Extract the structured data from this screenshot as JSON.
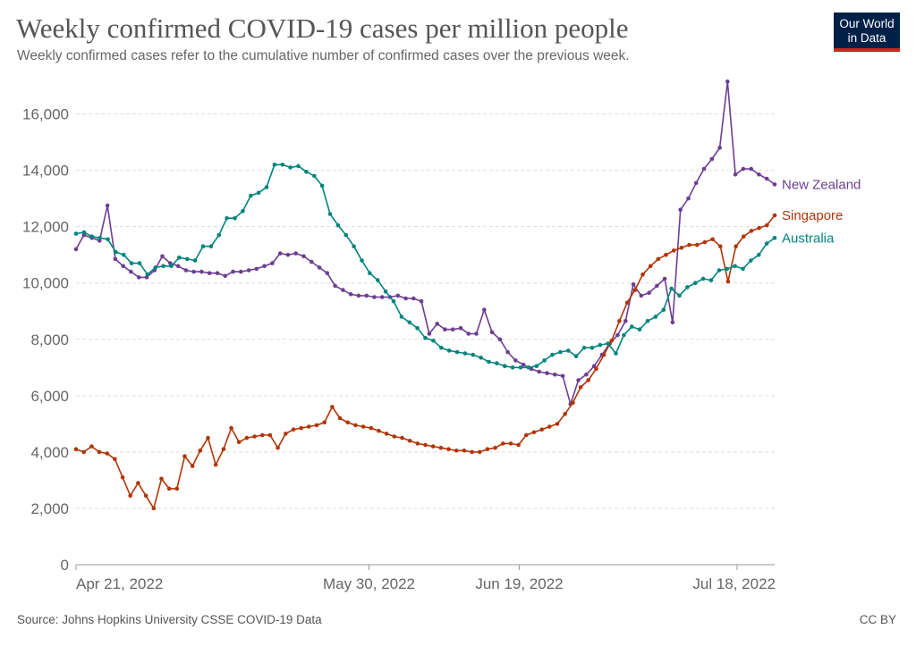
{
  "header": {
    "title": "Weekly confirmed COVID-19 cases per million people",
    "subtitle": "Weekly confirmed cases refer to the cumulative number of confirmed cases over the previous week.",
    "logo_line1": "Our World",
    "logo_line2": "in Data"
  },
  "footer": {
    "source": "Source: Johns Hopkins University CSSE COVID-19 Data",
    "license": "CC BY"
  },
  "colors": {
    "new_zealand": "#6D3E91",
    "singapore": "#B13507",
    "australia": "#00847E",
    "grid": "#dddddd",
    "axis_text": "#666666"
  },
  "chart_data": {
    "type": "line",
    "x_start": "2022-04-21",
    "x_end": "2022-07-23",
    "x_ticks": [
      {
        "date": "2022-04-21",
        "label": "Apr 21, 2022"
      },
      {
        "date": "2022-05-30",
        "label": "May 30, 2022"
      },
      {
        "date": "2022-06-19",
        "label": "Jun 19, 2022"
      },
      {
        "date": "2022-07-18",
        "label": "Jul 18, 2022"
      }
    ],
    "ylim": [
      0,
      17000
    ],
    "y_ticks": [
      0,
      2000,
      4000,
      6000,
      8000,
      10000,
      12000,
      14000,
      16000
    ],
    "y_tick_labels": [
      "0",
      "2,000",
      "4,000",
      "6,000",
      "8,000",
      "10,000",
      "12,000",
      "14,000",
      "16,000"
    ],
    "grid": true,
    "legend_placement": "line-end labels at right",
    "series": [
      {
        "name": "New Zealand",
        "color": "#6D3E91",
        "values": [
          11200,
          11700,
          11600,
          11500,
          12750,
          10850,
          10600,
          10400,
          10200,
          10200,
          10450,
          10950,
          10700,
          10600,
          10450,
          10400,
          10400,
          10350,
          10350,
          10250,
          10400,
          10400,
          10450,
          10500,
          10600,
          10700,
          11050,
          11000,
          11050,
          10950,
          10750,
          10550,
          10350,
          9900,
          9750,
          9600,
          9550,
          9550,
          9500,
          9500,
          9500,
          9550,
          9450,
          9450,
          9350,
          8200,
          8550,
          8350,
          8350,
          8400,
          8200,
          8200,
          9050,
          8250,
          8000,
          7550,
          7250,
          7100,
          6950,
          6850,
          6800,
          6750,
          6700,
          5700,
          6550,
          6750,
          7050,
          7450,
          7850,
          8150,
          8650,
          9950,
          9550,
          9650,
          9900,
          10150,
          8600,
          12600,
          13000,
          13550,
          14050,
          14400,
          14800,
          17150,
          13850,
          14050,
          14050,
          13850,
          13700,
          13500
        ]
      },
      {
        "name": "Singapore",
        "color": "#B13507",
        "values": [
          4100,
          4000,
          4200,
          4000,
          3950,
          3750,
          3100,
          2450,
          2900,
          2450,
          2000,
          3050,
          2700,
          2700,
          3850,
          3500,
          4050,
          4500,
          3550,
          4100,
          4850,
          4350,
          4500,
          4550,
          4600,
          4600,
          4150,
          4650,
          4800,
          4850,
          4900,
          4950,
          5050,
          5600,
          5200,
          5050,
          4950,
          4900,
          4850,
          4750,
          4650,
          4550,
          4500,
          4400,
          4300,
          4250,
          4200,
          4150,
          4100,
          4050,
          4050,
          4000,
          4000,
          4100,
          4150,
          4300,
          4300,
          4250,
          4600,
          4700,
          4800,
          4900,
          5000,
          5350,
          5750,
          6300,
          6550,
          6950,
          7450,
          7950,
          8650,
          9300,
          9750,
          10300,
          10600,
          10850,
          11000,
          11150,
          11250,
          11350,
          11350,
          11450,
          11550,
          11300,
          10050,
          11300,
          11650,
          11850,
          11950,
          12050,
          12400
        ]
      },
      {
        "name": "Australia",
        "color": "#00847E",
        "values": [
          11750,
          11800,
          11650,
          11600,
          11550,
          11100,
          11000,
          10700,
          10700,
          10300,
          10550,
          10600,
          10600,
          10900,
          10850,
          10800,
          11300,
          11300,
          11700,
          12300,
          12300,
          12550,
          13100,
          13200,
          13400,
          14200,
          14200,
          14100,
          14150,
          13950,
          13800,
          13450,
          12450,
          12050,
          11700,
          11300,
          10800,
          10350,
          10100,
          9700,
          9350,
          8800,
          8600,
          8400,
          8050,
          7950,
          7700,
          7600,
          7550,
          7500,
          7450,
          7350,
          7200,
          7150,
          7050,
          7000,
          7000,
          7000,
          7050,
          7250,
          7450,
          7550,
          7600,
          7400,
          7700,
          7700,
          7800,
          7850,
          7500,
          8150,
          8450,
          8350,
          8650,
          8800,
          9050,
          9800,
          9550,
          9850,
          10000,
          10150,
          10100,
          10450,
          10500,
          10600,
          10500,
          10800,
          11000,
          11400,
          11600
        ]
      }
    ]
  }
}
